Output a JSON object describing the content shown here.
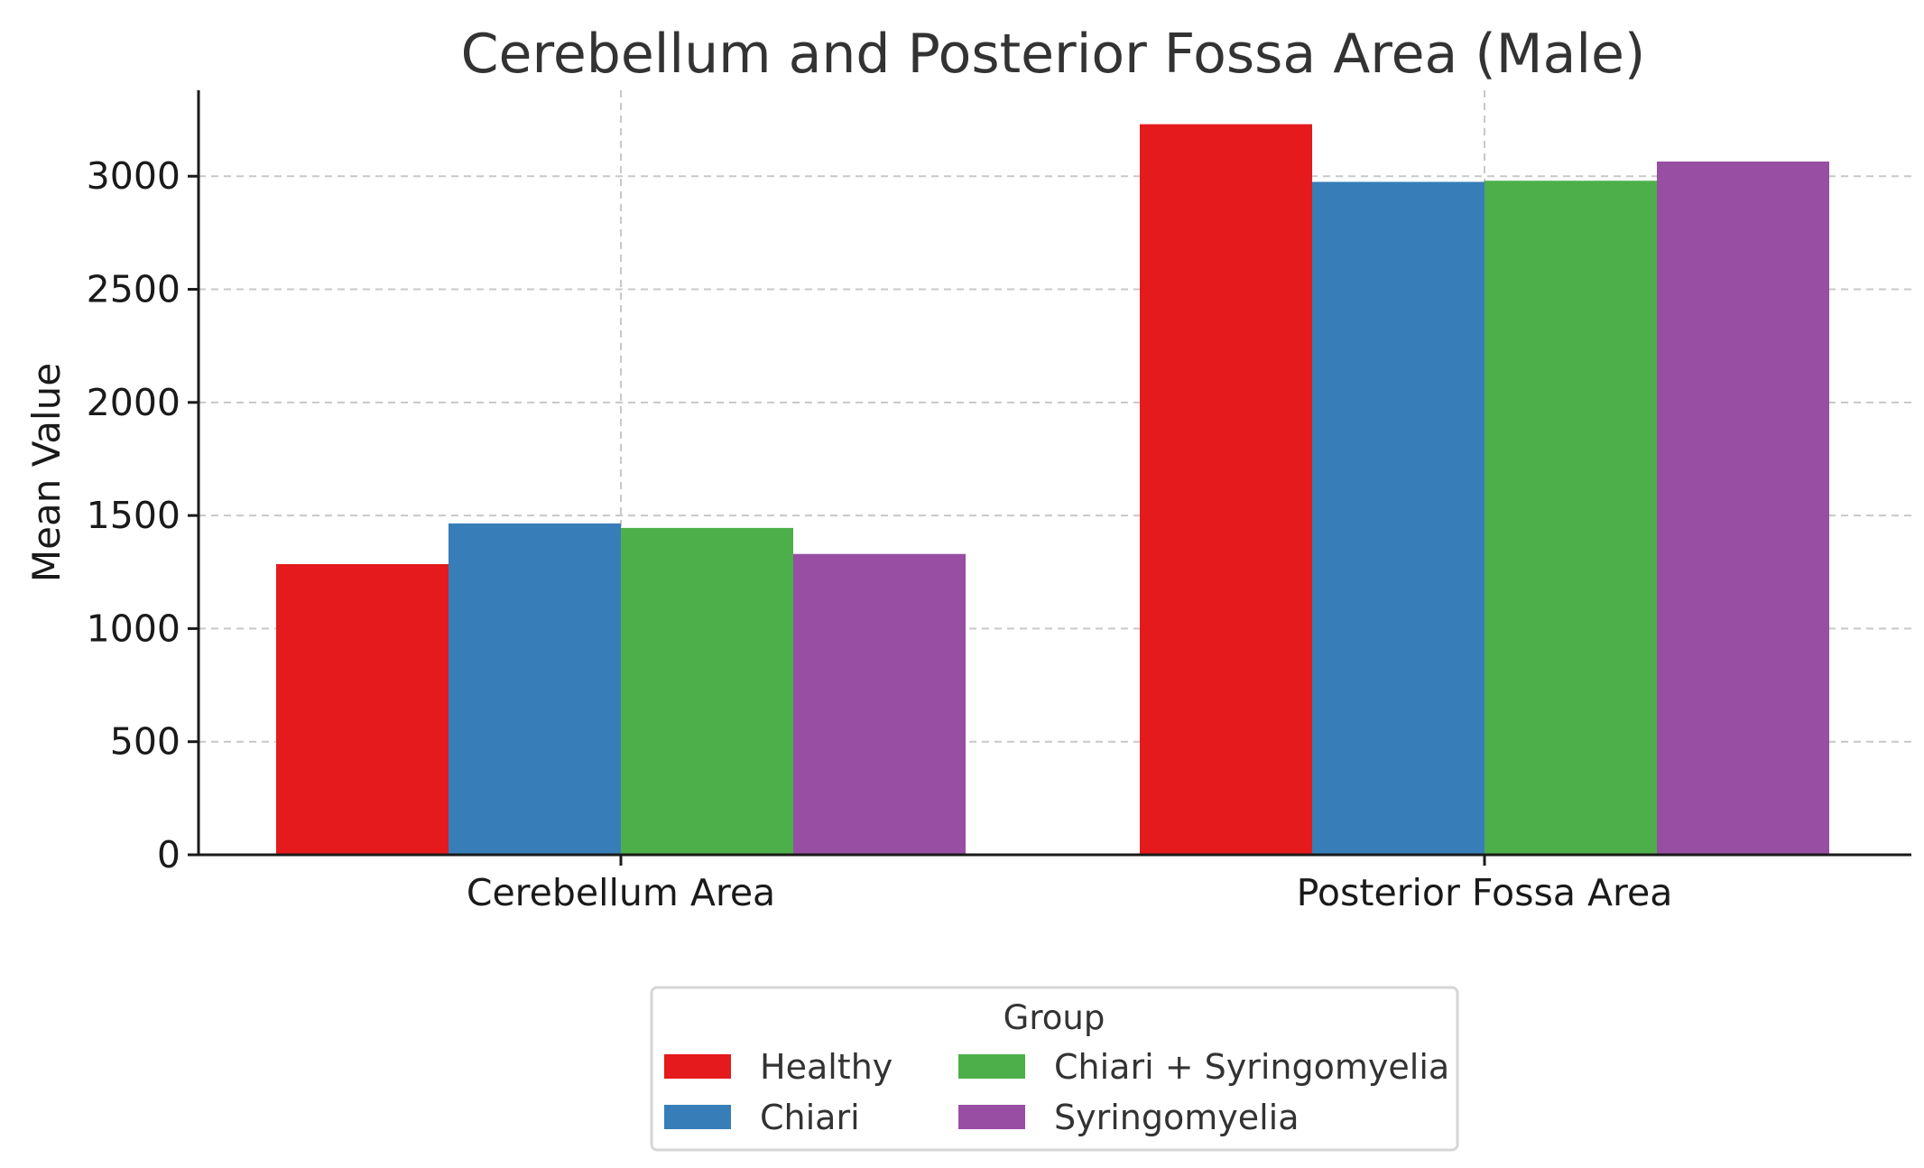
{
  "chart_data": {
    "type": "bar",
    "title": "Cerebellum and Posterior Fossa Area (Male)",
    "xlabel": "",
    "ylabel": "Mean Value",
    "ylim": [
      0,
      3380
    ],
    "yticks": [
      0,
      500,
      1000,
      1500,
      2000,
      2500,
      3000
    ],
    "ytick_labels": [
      "0",
      "500",
      "1000",
      "1500",
      "2000",
      "2500",
      "3000"
    ],
    "grid": true,
    "categories": [
      "Cerebellum Area",
      "Posterior Fossa Area"
    ],
    "series": [
      {
        "name": "Healthy",
        "color": "#e41a1c",
        "values": [
          1285,
          3230
        ]
      },
      {
        "name": "Chiari",
        "color": "#377eb8",
        "values": [
          1465,
          2975
        ]
      },
      {
        "name": "Chiari + Syringomyelia",
        "color": "#4daf4a",
        "values": [
          1445,
          2980
        ]
      },
      {
        "name": "Syringomyelia",
        "color": "#984ea3",
        "values": [
          1330,
          3065
        ]
      }
    ],
    "legend": {
      "title": "Group",
      "placement": "bottom-center",
      "columns": 2
    }
  }
}
